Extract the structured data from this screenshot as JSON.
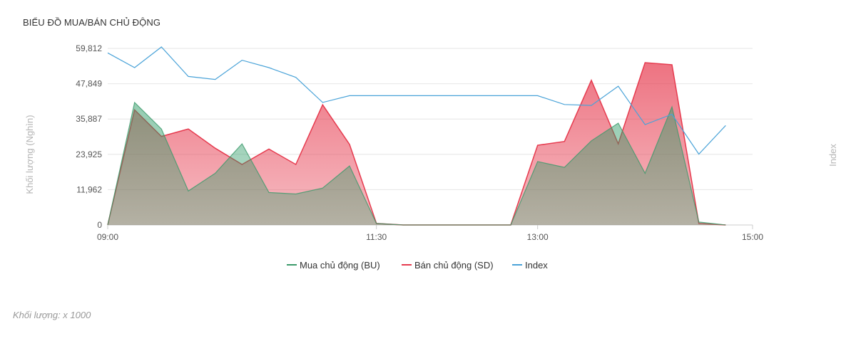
{
  "header": {
    "title": "BIỂU ĐỒ MUA/BÁN CHỦ ĐỘNG"
  },
  "footnote": "Khối lượng: x 1000",
  "colors": {
    "bu": "#3a9a6a",
    "sd": "#e63a4e",
    "index": "#4aa3d8",
    "grid": "#e6e6e6",
    "axis_text": "#666666",
    "axis_title": "#b5b5b5"
  },
  "legend": [
    {
      "key": "bu",
      "label": "Mua chủ động (BU)"
    },
    {
      "key": "sd",
      "label": "Bán chủ động (SD)"
    },
    {
      "key": "index",
      "label": "Index"
    }
  ],
  "chart_data": {
    "type": "area",
    "title": "BIỂU ĐỒ MUA/BÁN CHỦ ĐỘNG",
    "ylabel": "Khối lượng (Nghìn)",
    "y2label": "Index",
    "x_axis": {
      "min": "09:00",
      "max": "15:00",
      "ticks": [
        "09:00",
        "11:30",
        "13:00",
        "15:00"
      ]
    },
    "y_axis": {
      "min": 0,
      "max": 59812,
      "ticks": [
        0,
        11962,
        23925,
        35887,
        47849,
        59812
      ],
      "tick_labels": [
        "0",
        "11,962",
        "23,925",
        "35,887",
        "47,849",
        "59,812"
      ]
    },
    "grid": true,
    "legend_position": "bottom",
    "x": [
      "09:00",
      "09:15",
      "09:30",
      "09:45",
      "10:00",
      "10:15",
      "10:30",
      "10:45",
      "11:00",
      "11:15",
      "11:30",
      "13:00",
      "13:15",
      "13:30",
      "13:45",
      "14:00",
      "14:15",
      "14:30",
      "14:45",
      "15:00"
    ],
    "x_extra": {
      "13:45": "13:45",
      "14:00": "14:00",
      "14:15": "14:15",
      "14:30": "14:30",
      "14:45": "14:45"
    },
    "series": [
      {
        "name": "Mua chủ động (BU)",
        "key": "bu",
        "type": "area",
        "points": [
          [
            "09:00",
            0
          ],
          [
            "09:15",
            41500
          ],
          [
            "09:30",
            32500
          ],
          [
            "09:45",
            11500
          ],
          [
            "10:00",
            17500
          ],
          [
            "10:15",
            27500
          ],
          [
            "10:30",
            11000
          ],
          [
            "10:45",
            10500
          ],
          [
            "11:00",
            12500
          ],
          [
            "11:15",
            20000
          ],
          [
            "11:30",
            500
          ],
          [
            "11:45",
            0
          ],
          [
            "12:00",
            0
          ],
          [
            "12:15",
            0
          ],
          [
            "12:30",
            0
          ],
          [
            "12:45",
            0
          ],
          [
            "13:00",
            21500
          ],
          [
            "13:15",
            19500
          ],
          [
            "13:30",
            28500
          ],
          [
            "13:45",
            34500
          ],
          [
            "14:00",
            17500
          ],
          [
            "14:15",
            40000
          ],
          [
            "14:30",
            1000
          ],
          [
            "14:45",
            0
          ]
        ]
      },
      {
        "name": "Bán chủ động (SD)",
        "key": "sd",
        "type": "area",
        "points": [
          [
            "09:00",
            0
          ],
          [
            "09:15",
            39000
          ],
          [
            "09:30",
            30000
          ],
          [
            "09:45",
            32500
          ],
          [
            "10:00",
            26000
          ],
          [
            "10:15",
            20500
          ],
          [
            "10:30",
            25700
          ],
          [
            "10:45",
            20500
          ],
          [
            "11:00",
            40700
          ],
          [
            "11:15",
            27300
          ],
          [
            "11:30",
            500
          ],
          [
            "11:45",
            0
          ],
          [
            "12:00",
            0
          ],
          [
            "12:15",
            0
          ],
          [
            "12:30",
            0
          ],
          [
            "12:45",
            0
          ],
          [
            "13:00",
            27000
          ],
          [
            "13:15",
            28300
          ],
          [
            "13:30",
            49000
          ],
          [
            "13:45",
            27500
          ],
          [
            "14:00",
            55000
          ],
          [
            "14:15",
            54300
          ],
          [
            "14:30",
            500
          ],
          [
            "14:45",
            0
          ]
        ]
      },
      {
        "name": "Index",
        "key": "index",
        "type": "line",
        "points": [
          [
            "09:00",
            58300
          ],
          [
            "09:15",
            53300
          ],
          [
            "09:30",
            60300
          ],
          [
            "09:45",
            50300
          ],
          [
            "10:00",
            49300
          ],
          [
            "10:15",
            55800
          ],
          [
            "10:30",
            53300
          ],
          [
            "10:45",
            50000
          ],
          [
            "11:00",
            41500
          ],
          [
            "11:15",
            43800
          ],
          [
            "11:30",
            43800
          ],
          [
            "12:00",
            43800
          ],
          [
            "12:30",
            43800
          ],
          [
            "13:00",
            43800
          ],
          [
            "13:15",
            40800
          ],
          [
            "13:30",
            40500
          ],
          [
            "13:45",
            47000
          ],
          [
            "14:00",
            34000
          ],
          [
            "14:15",
            37500
          ],
          [
            "14:30",
            24000
          ],
          [
            "14:45",
            33700
          ]
        ]
      }
    ]
  }
}
